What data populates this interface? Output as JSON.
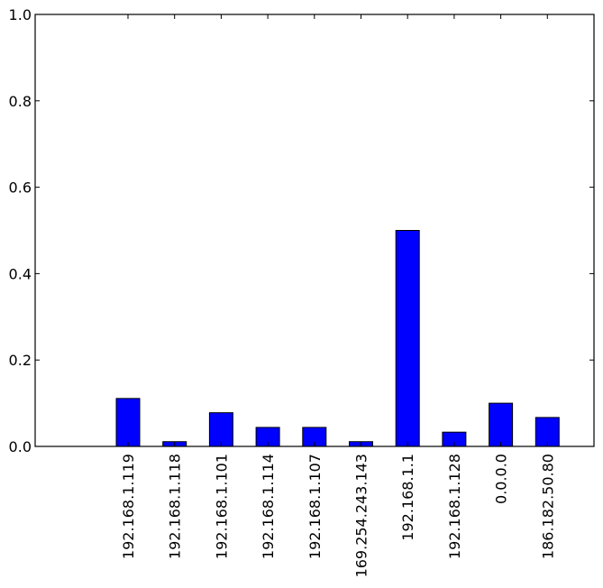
{
  "chart_data": {
    "type": "bar",
    "categories": [
      "192.168.1.119",
      "192.168.1.118",
      "192.168.1.101",
      "192.168.1.114",
      "192.168.1.107",
      "169.254.243.143",
      "192.168.1.1",
      "192.168.1.128",
      "0.0.0.0",
      "186.182.50.80"
    ],
    "values": [
      0.111,
      0.011,
      0.078,
      0.044,
      0.044,
      0.011,
      0.5,
      0.033,
      0.1,
      0.067
    ],
    "ylim": [
      0,
      1.0
    ],
    "yticks": [
      0.0,
      0.2,
      0.4,
      0.6,
      0.8,
      1.0
    ],
    "ytick_labels": [
      "0.0",
      "0.2",
      "0.4",
      "0.6",
      "0.8",
      "1.0"
    ],
    "title": "",
    "xlabel": "",
    "ylabel": "",
    "grid": false,
    "bar_color": "#0000ff",
    "edge_color": "#000000"
  }
}
